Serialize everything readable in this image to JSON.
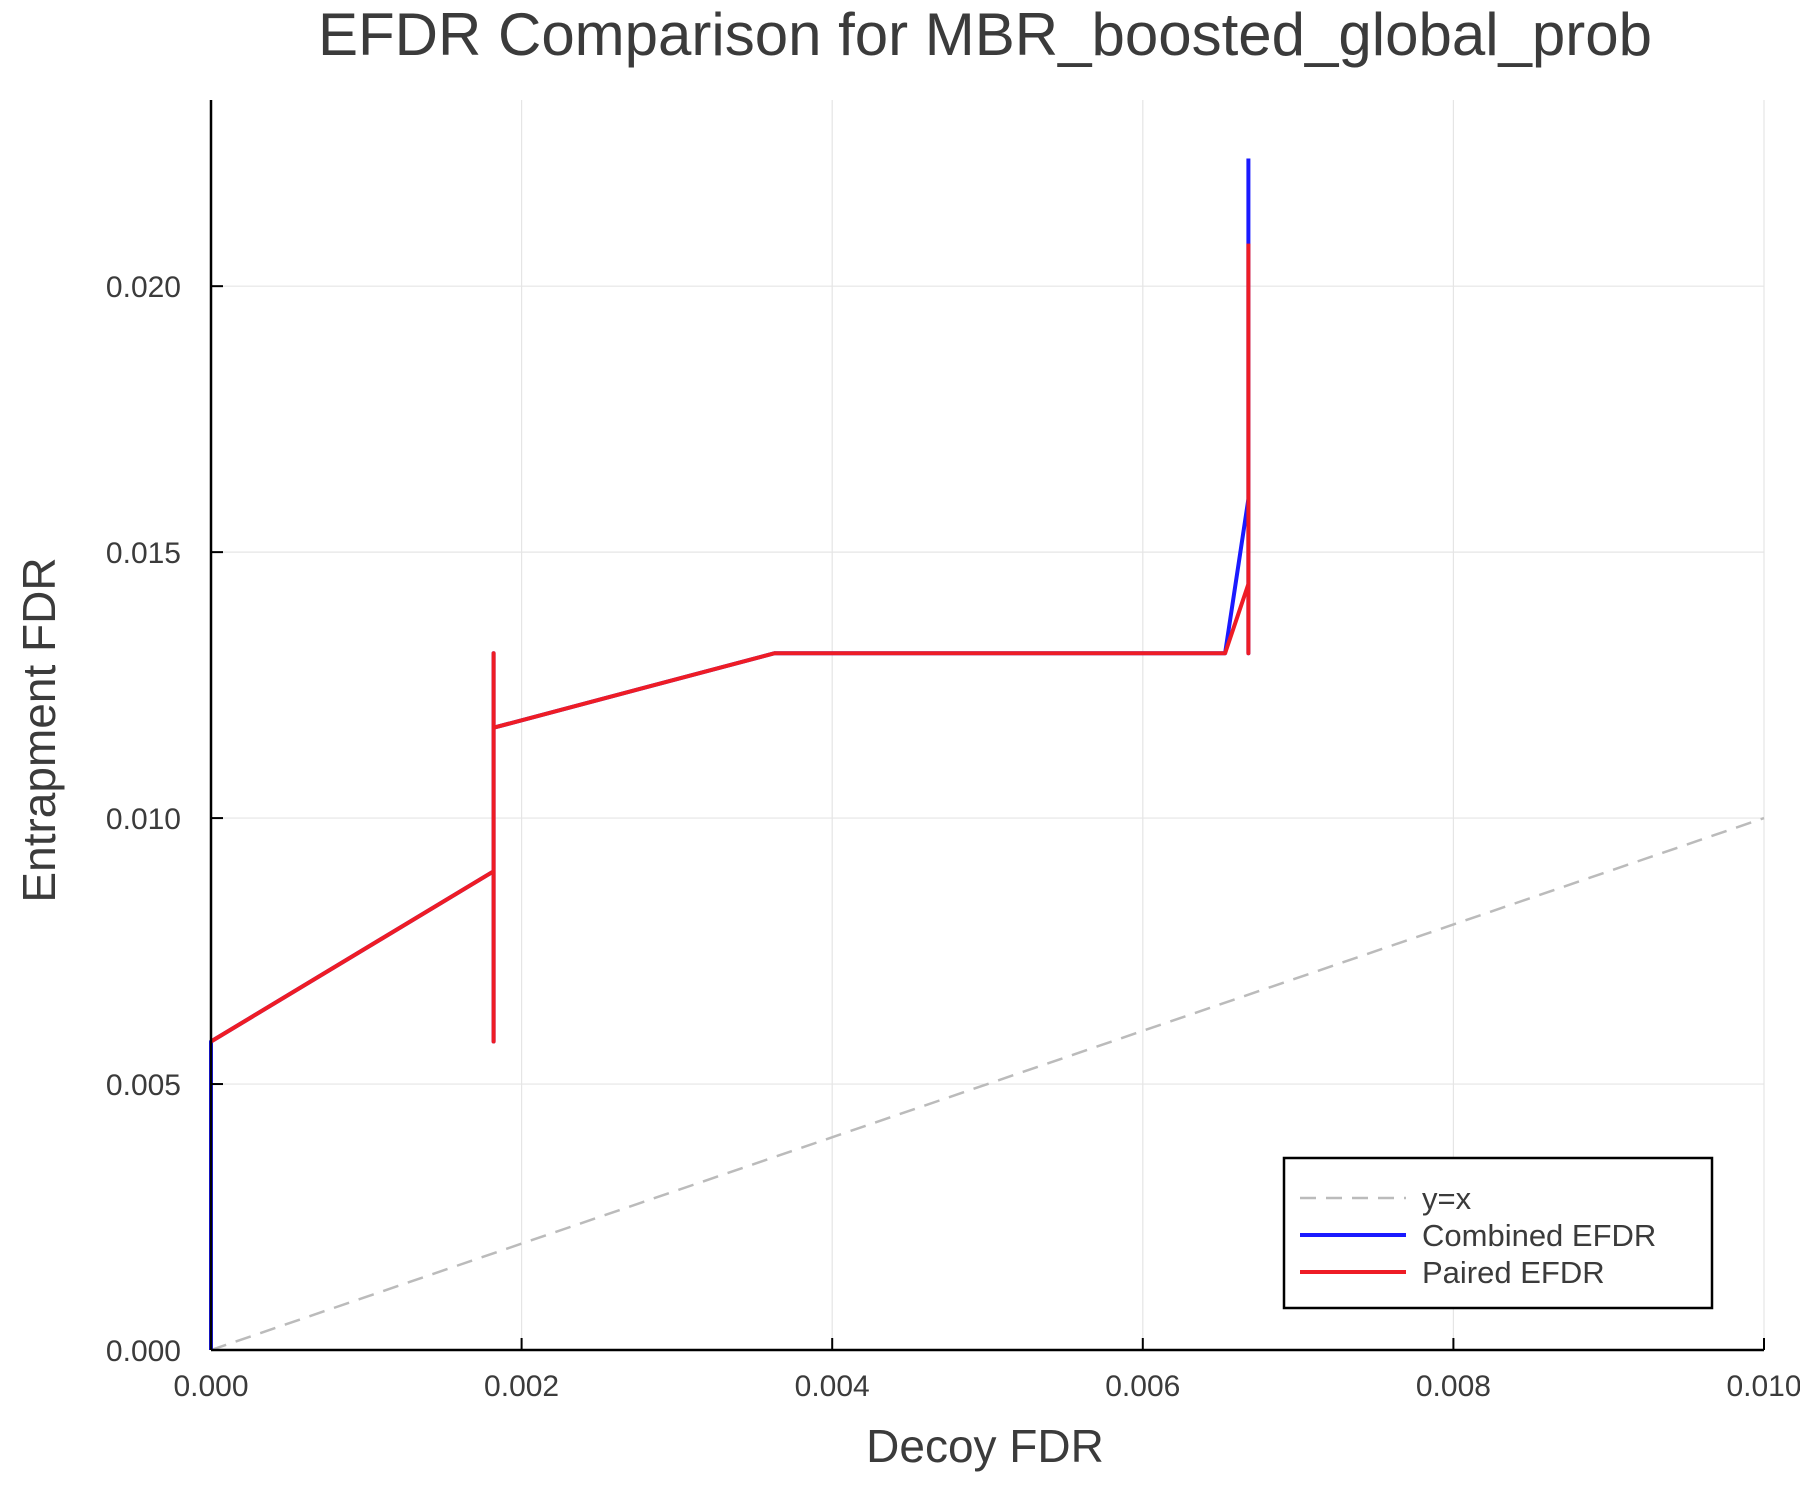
{
  "chart_data": {
    "type": "line",
    "title": "EFDR Comparison for MBR_boosted_global_prob",
    "xlabel": "Decoy FDR",
    "ylabel": "Entrapment FDR",
    "xlim": [
      0,
      0.01
    ],
    "ylim": [
      0,
      0.0235
    ],
    "x_ticks": [
      0,
      0.002,
      0.004,
      0.006,
      0.008,
      0.01
    ],
    "x_tick_labels": [
      "0.000",
      "0.002",
      "0.004",
      "0.006",
      "0.008",
      "0.010"
    ],
    "y_ticks": [
      0,
      0.005,
      0.01,
      0.015,
      0.02
    ],
    "y_tick_labels": [
      "0.000",
      "0.005",
      "0.010",
      "0.015",
      "0.020"
    ],
    "grid": true,
    "legend_position": "bottom-right",
    "series": [
      {
        "name": "y=x",
        "color": "#bbbbbb",
        "dash": "dashed",
        "x": [
          0,
          0.01
        ],
        "y": [
          0,
          0.01
        ]
      },
      {
        "name": "Combined EFDR",
        "color": "#1a1aff",
        "dash": "solid",
        "x": [
          0,
          0,
          0.00182,
          0.00182,
          0.00182,
          0.00182,
          0.00363,
          0.00653,
          0.00668,
          0.00668,
          0.00668
        ],
        "y": [
          0,
          0.0058,
          0.009,
          0.0058,
          0.0131,
          0.0117,
          0.0131,
          0.0131,
          0.016,
          0.0131,
          0.0224
        ]
      },
      {
        "name": "Paired EFDR",
        "color": "#ee1c25",
        "dash": "solid",
        "x": [
          0,
          0.00182,
          0.00182,
          0.00182,
          0.00182,
          0.00363,
          0.00653,
          0.00668,
          0.00668,
          0.00668
        ],
        "y": [
          0.0058,
          0.009,
          0.0058,
          0.0131,
          0.0117,
          0.0131,
          0.0131,
          0.0144,
          0.0131,
          0.0208
        ]
      }
    ]
  }
}
